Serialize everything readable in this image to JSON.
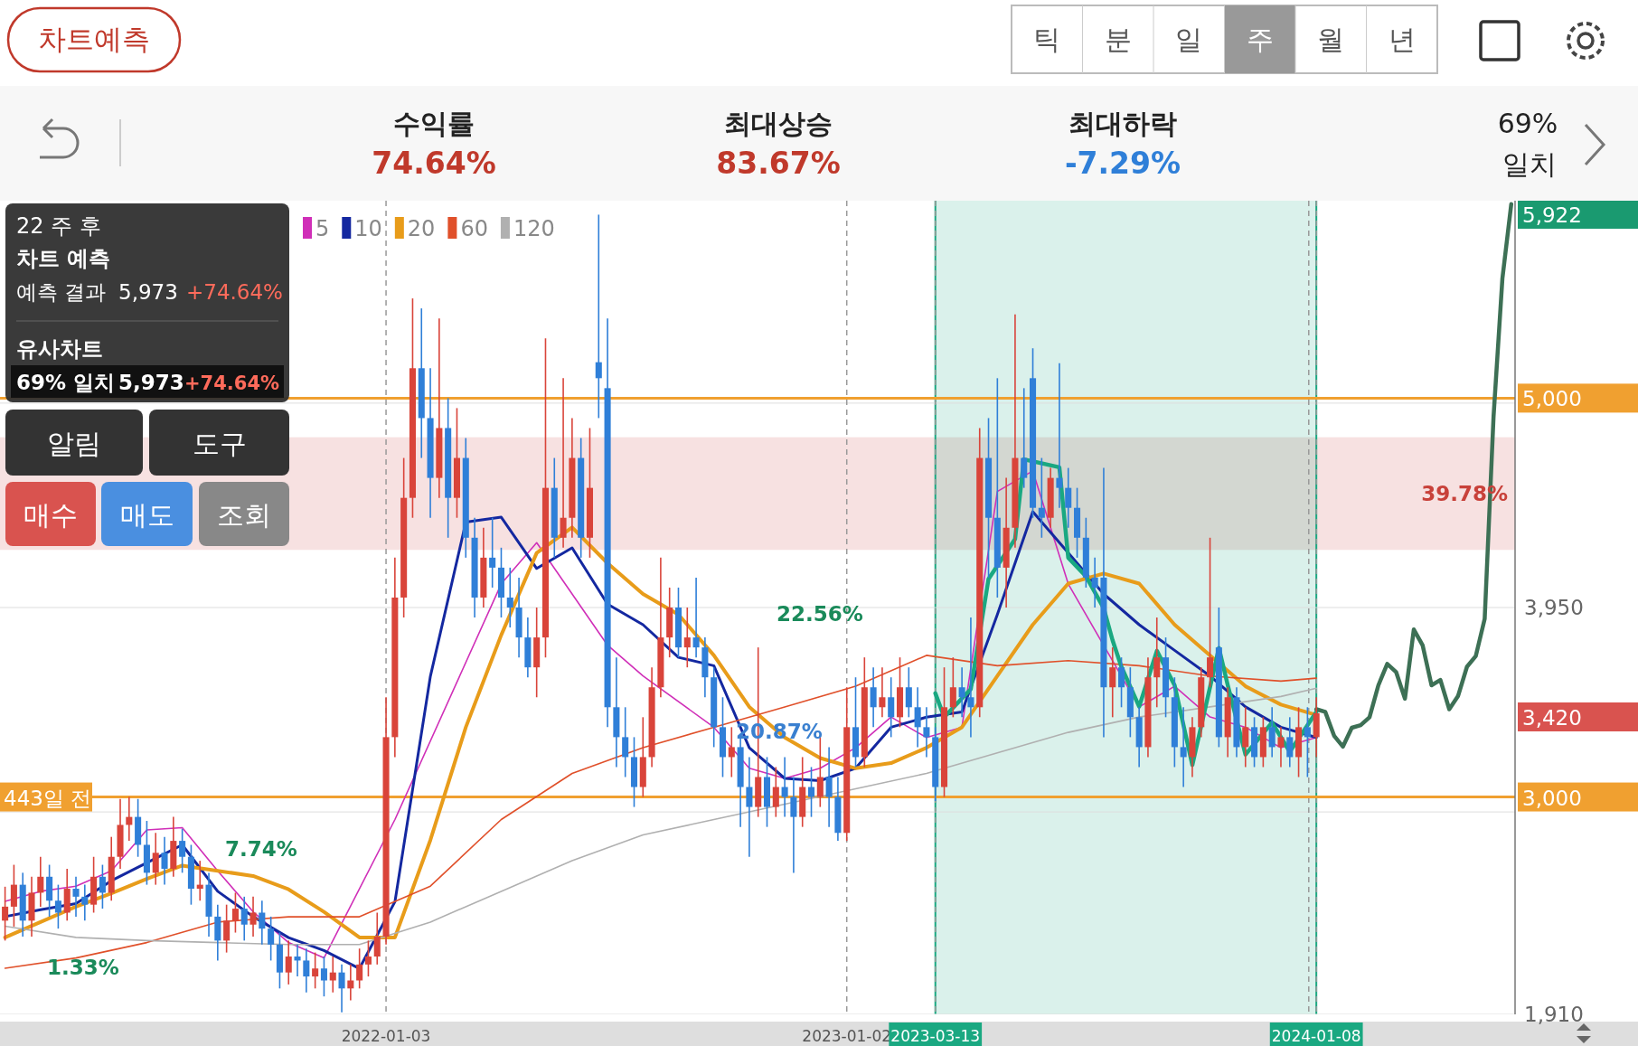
{
  "chart_data": {
    "type": "candlestick",
    "title": "차트예측",
    "x": [
      "2021-03-08",
      "2021-03-15",
      "2021-03-22",
      "2021-03-29",
      "2021-04-05",
      "2021-04-12",
      "2021-04-19",
      "2021-04-26",
      "2021-05-03",
      "2021-05-10",
      "2021-05-17",
      "2021-05-24",
      "2021-05-31",
      "2021-06-07",
      "2021-06-14",
      "2021-06-21",
      "2021-06-28",
      "2021-07-05",
      "2021-07-12",
      "2021-07-19",
      "2021-07-26",
      "2021-08-02",
      "2021-08-09",
      "2021-08-16",
      "2021-08-23",
      "2021-08-30",
      "2021-09-06",
      "2021-09-13",
      "2021-09-20",
      "2021-09-27",
      "2021-10-04",
      "2021-10-11",
      "2021-10-18",
      "2021-10-25",
      "2021-11-01",
      "2021-11-08",
      "2021-11-15",
      "2021-11-22",
      "2021-11-29",
      "2021-12-06",
      "2021-12-13",
      "2021-12-20",
      "2021-12-27",
      "2022-01-03",
      "2022-01-10",
      "2022-01-17",
      "2022-01-24",
      "2022-01-31",
      "2022-02-07",
      "2022-02-14",
      "2022-02-21",
      "2022-02-28",
      "2022-03-07",
      "2022-03-14",
      "2022-03-21",
      "2022-03-28",
      "2022-04-04",
      "2022-04-11",
      "2022-04-18",
      "2022-04-25",
      "2022-05-02",
      "2022-05-09",
      "2022-05-16",
      "2022-05-23",
      "2022-05-30",
      "2022-06-06",
      "2022-06-13",
      "2022-06-20",
      "2022-06-27",
      "2022-07-04",
      "2022-07-11",
      "2022-07-18",
      "2022-07-25",
      "2022-08-01",
      "2022-08-08",
      "2022-08-15",
      "2022-08-22",
      "2022-08-29",
      "2022-09-05",
      "2022-09-12",
      "2022-09-19",
      "2022-09-26",
      "2022-10-03",
      "2022-10-10",
      "2022-10-17",
      "2022-10-24",
      "2022-10-31",
      "2022-11-07",
      "2022-11-14",
      "2022-11-21",
      "2022-11-28",
      "2022-12-05",
      "2022-12-12",
      "2022-12-19",
      "2022-12-26",
      "2023-01-02",
      "2023-01-09",
      "2023-01-16",
      "2023-01-23",
      "2023-01-30",
      "2023-02-06",
      "2023-02-13",
      "2023-02-20",
      "2023-02-27",
      "2023-03-06",
      "2023-03-13",
      "2023-03-20",
      "2023-03-27",
      "2023-04-03",
      "2023-04-10",
      "2023-04-17",
      "2023-04-24",
      "2023-05-01",
      "2023-05-08",
      "2023-05-15",
      "2023-05-22",
      "2023-05-29",
      "2023-06-05",
      "2023-06-12",
      "2023-06-19",
      "2023-06-26",
      "2023-07-03",
      "2023-07-10",
      "2023-07-17",
      "2023-07-24",
      "2023-07-31",
      "2023-08-07",
      "2023-08-14",
      "2023-08-21",
      "2023-08-28",
      "2023-09-04",
      "2023-09-11",
      "2023-09-18",
      "2023-09-25",
      "2023-10-02",
      "2023-10-09",
      "2023-10-16",
      "2023-10-23",
      "2023-10-30",
      "2023-11-06",
      "2023-11-13",
      "2023-11-20",
      "2023-11-27",
      "2023-12-04",
      "2023-12-11",
      "2023-12-18",
      "2023-12-25",
      "2024-01-01",
      "2024-01-08"
    ],
    "ohlc": [
      [
        2380,
        2550,
        2280,
        2450
      ],
      [
        2450,
        2660,
        2350,
        2560
      ],
      [
        2560,
        2620,
        2300,
        2380
      ],
      [
        2380,
        2600,
        2300,
        2520
      ],
      [
        2520,
        2700,
        2450,
        2600
      ],
      [
        2600,
        2660,
        2400,
        2480
      ],
      [
        2480,
        2560,
        2340,
        2420
      ],
      [
        2420,
        2640,
        2380,
        2540
      ],
      [
        2540,
        2600,
        2400,
        2500
      ],
      [
        2500,
        2560,
        2380,
        2460
      ],
      [
        2460,
        2700,
        2420,
        2600
      ],
      [
        2600,
        2660,
        2440,
        2520
      ],
      [
        2520,
        2800,
        2480,
        2700
      ],
      [
        2700,
        2990,
        2640,
        2860
      ],
      [
        2860,
        3000,
        2780,
        2900
      ],
      [
        2900,
        2990,
        2700,
        2760
      ],
      [
        2760,
        2880,
        2560,
        2620
      ],
      [
        2620,
        2820,
        2560,
        2720
      ],
      [
        2720,
        2800,
        2560,
        2640
      ],
      [
        2640,
        2900,
        2600,
        2780
      ],
      [
        2780,
        2840,
        2620,
        2700
      ],
      [
        2700,
        2760,
        2460,
        2540
      ],
      [
        2540,
        2680,
        2480,
        2560
      ],
      [
        2560,
        2620,
        2300,
        2400
      ],
      [
        2400,
        2460,
        2180,
        2280
      ],
      [
        2280,
        2460,
        2220,
        2380
      ],
      [
        2380,
        2520,
        2320,
        2440
      ],
      [
        2440,
        2500,
        2280,
        2360
      ],
      [
        2360,
        2500,
        2300,
        2420
      ],
      [
        2420,
        2480,
        2260,
        2340
      ],
      [
        2340,
        2400,
        2180,
        2260
      ],
      [
        2260,
        2320,
        2040,
        2120
      ],
      [
        2120,
        2280,
        2060,
        2200
      ],
      [
        2200,
        2260,
        2100,
        2180
      ],
      [
        2180,
        2240,
        2020,
        2100
      ],
      [
        2100,
        2220,
        2040,
        2140
      ],
      [
        2140,
        2200,
        2000,
        2080
      ],
      [
        2080,
        2200,
        2020,
        2120
      ],
      [
        2120,
        2160,
        1920,
        2040
      ],
      [
        2040,
        2160,
        1980,
        2080
      ],
      [
        2080,
        2240,
        2040,
        2160
      ],
      [
        2160,
        2280,
        2100,
        2200
      ],
      [
        2200,
        2420,
        2160,
        2300
      ],
      [
        2300,
        3500,
        2260,
        3300
      ],
      [
        3300,
        4200,
        3200,
        4000
      ],
      [
        4000,
        4700,
        3900,
        4500
      ],
      [
        4500,
        5500,
        4400,
        5150
      ],
      [
        5150,
        5450,
        4700,
        4900
      ],
      [
        4900,
        5150,
        4400,
        4600
      ],
      [
        4600,
        5400,
        4500,
        4850
      ],
      [
        4850,
        5000,
        4300,
        4500
      ],
      [
        4500,
        4950,
        4400,
        4700
      ],
      [
        4700,
        4800,
        4200,
        4300
      ],
      [
        4300,
        4400,
        3900,
        4000
      ],
      [
        4000,
        4350,
        3950,
        4200
      ],
      [
        4200,
        4400,
        4050,
        4150
      ],
      [
        4150,
        4250,
        3900,
        4000
      ],
      [
        4000,
        4150,
        3850,
        3950
      ],
      [
        3950,
        4100,
        3700,
        3800
      ],
      [
        3800,
        3900,
        3600,
        3650
      ],
      [
        3650,
        3950,
        3500,
        3800
      ],
      [
        3800,
        5300,
        3700,
        4550
      ],
      [
        4550,
        4700,
        4200,
        4300
      ],
      [
        4300,
        5100,
        4250,
        4400
      ],
      [
        4400,
        4900,
        4300,
        4700
      ],
      [
        4700,
        4800,
        4200,
        4300
      ],
      [
        4300,
        4850,
        4200,
        4550
      ],
      [
        5180,
        5920,
        4900,
        5100
      ],
      [
        5050,
        5400,
        3350,
        3450
      ],
      [
        3450,
        3700,
        3150,
        3300
      ],
      [
        3300,
        3450,
        3100,
        3200
      ],
      [
        3200,
        3300,
        2950,
        3050
      ],
      [
        3050,
        3400,
        3000,
        3200
      ],
      [
        3200,
        3650,
        3150,
        3550
      ],
      [
        3550,
        4200,
        3500,
        3800
      ],
      [
        3800,
        4050,
        3700,
        3950
      ],
      [
        3950,
        4050,
        3700,
        3750
      ],
      [
        3750,
        3950,
        3650,
        3800
      ],
      [
        3800,
        4100,
        3700,
        3750
      ],
      [
        3750,
        3800,
        3500,
        3600
      ],
      [
        3600,
        3650,
        3250,
        3350
      ],
      [
        3350,
        3500,
        3100,
        3200
      ],
      [
        3200,
        3350,
        3100,
        3250
      ],
      [
        3250,
        3300,
        2850,
        3050
      ],
      [
        3050,
        3200,
        2700,
        2950
      ],
      [
        2950,
        3750,
        2900,
        3100
      ],
      [
        3100,
        3200,
        2850,
        2950
      ],
      [
        2950,
        3150,
        2900,
        3050
      ],
      [
        3050,
        3200,
        2900,
        3000
      ],
      [
        3000,
        3100,
        2620,
        2900
      ],
      [
        2900,
        3200,
        2850,
        3050
      ],
      [
        3050,
        3150,
        2900,
        3000
      ],
      [
        3000,
        3300,
        2950,
        3100
      ],
      [
        3100,
        3250,
        2850,
        3000
      ],
      [
        3000,
        3100,
        2780,
        2820
      ],
      [
        2820,
        3550,
        2780,
        3350
      ],
      [
        3350,
        3600,
        3150,
        3200
      ],
      [
        3200,
        3700,
        3150,
        3550
      ],
      [
        3550,
        3650,
        3350,
        3450
      ],
      [
        3450,
        3650,
        3400,
        3500
      ],
      [
        3500,
        3600,
        3300,
        3400
      ],
      [
        3400,
        3700,
        3350,
        3550
      ],
      [
        3550,
        3650,
        3400,
        3450
      ],
      [
        3450,
        3550,
        3250,
        3350
      ],
      [
        3350,
        3450,
        3200,
        3300
      ],
      [
        3300,
        3350,
        2980,
        3050
      ],
      [
        3050,
        3650,
        3000,
        3450
      ],
      [
        3450,
        3700,
        3400,
        3550
      ],
      [
        3550,
        3650,
        3400,
        3500
      ],
      [
        3500,
        3900,
        3300,
        3450
      ],
      [
        3450,
        4850,
        3400,
        4700
      ],
      [
        4700,
        4900,
        4100,
        4400
      ],
      [
        4400,
        5100,
        4000,
        4150
      ],
      [
        4150,
        4600,
        3950,
        4350
      ],
      [
        4350,
        5420,
        4250,
        4700
      ],
      [
        4700,
        5050,
        4550,
        4600
      ],
      [
        5100,
        5250,
        4400,
        4450
      ],
      [
        4450,
        4700,
        4300,
        4400
      ],
      [
        4400,
        4650,
        4350,
        4600
      ],
      [
        4600,
        5175,
        4450,
        4550
      ],
      [
        4550,
        4650,
        4350,
        4450
      ],
      [
        4450,
        4550,
        4200,
        4300
      ],
      [
        4300,
        4400,
        4050,
        4100
      ],
      [
        4100,
        4200,
        3950,
        4050
      ],
      [
        4100,
        4650,
        3300,
        3550
      ],
      [
        3550,
        3750,
        3400,
        3650
      ],
      [
        3650,
        3700,
        3450,
        3550
      ],
      [
        3550,
        3650,
        3300,
        3400
      ],
      [
        3400,
        3450,
        3150,
        3250
      ],
      [
        3250,
        3700,
        3200,
        3600
      ],
      [
        3600,
        3900,
        3450,
        3700
      ],
      [
        3700,
        3800,
        3400,
        3500
      ],
      [
        3500,
        3600,
        3150,
        3250
      ],
      [
        3250,
        3450,
        3050,
        3200
      ],
      [
        3200,
        3400,
        3100,
        3350
      ],
      [
        3350,
        3650,
        3300,
        3600
      ],
      [
        3600,
        4300,
        3550,
        3700
      ],
      [
        3750,
        3950,
        3250,
        3300
      ],
      [
        3300,
        3550,
        3200,
        3500
      ],
      [
        3500,
        3550,
        3200,
        3250
      ],
      [
        3250,
        3450,
        3150,
        3350
      ],
      [
        3350,
        3400,
        3150,
        3200
      ],
      [
        3200,
        3400,
        3150,
        3350
      ],
      [
        3350,
        3450,
        3200,
        3250
      ],
      [
        3250,
        3350,
        3150,
        3300
      ],
      [
        3300,
        3400,
        3150,
        3200
      ],
      [
        3200,
        3450,
        3100,
        3350
      ],
      [
        3350,
        3450,
        3100,
        3300
      ],
      [
        3300,
        3500,
        3200,
        3420
      ]
    ],
    "series": [
      {
        "name": "5",
        "type": "line",
        "color": "#d02fb8",
        "x": [
          "2021-03-08",
          "2021-04-05",
          "2021-05-03",
          "2021-05-31",
          "2021-06-28",
          "2021-07-26",
          "2021-08-23",
          "2021-09-20",
          "2021-10-18",
          "2021-11-15",
          "2021-12-13",
          "2022-01-10",
          "2022-02-07",
          "2022-03-07",
          "2022-04-04",
          "2022-05-02",
          "2022-05-30",
          "2022-06-27",
          "2022-07-25",
          "2022-08-22",
          "2022-09-19",
          "2022-10-17",
          "2022-11-14",
          "2022-12-12",
          "2023-01-09",
          "2023-02-06",
          "2023-03-06",
          "2023-04-03",
          "2023-05-01",
          "2023-05-29",
          "2023-06-26",
          "2023-07-24",
          "2023-08-21",
          "2023-09-18",
          "2023-10-16",
          "2023-11-13",
          "2023-12-11",
          "2024-01-08"
        ],
        "values": [
          2476,
          2527,
          2553,
          2630,
          2835,
          2846,
          2630,
          2424,
          2270,
          2193,
          null,
          2887,
          null,
          null,
          4069,
          4275,
          null,
          3761,
          3607,
          null,
          3350,
          3144,
          3093,
          3144,
          3247,
          3401,
          3298,
          3350,
          4532,
          4635,
          4069,
          null,
          3452,
          3555,
          3401,
          3350,
          3247,
          3298
        ]
      },
      {
        "name": "10",
        "type": "line",
        "color": "#1428a0",
        "x": [
          "2021-03-08",
          "2021-04-05",
          "2021-05-03",
          "2021-05-31",
          "2021-06-28",
          "2021-07-26",
          "2021-08-23",
          "2021-09-20",
          "2021-10-18",
          "2021-11-15",
          "2021-12-13",
          "2022-01-10",
          "2022-02-07",
          "2022-03-07",
          "2022-04-04",
          "2022-05-02",
          "2022-05-30",
          "2022-06-27",
          "2022-07-25",
          "2022-08-22",
          "2022-09-19",
          "2022-10-17",
          "2022-11-14",
          "2022-12-12",
          "2023-01-09",
          "2023-02-06",
          "2023-03-06",
          "2023-04-03",
          "2023-05-01",
          "2023-05-29",
          "2023-06-26",
          "2023-07-24",
          "2023-08-21",
          "2023-09-18",
          "2023-10-16",
          "2023-11-13",
          "2023-12-11",
          "2024-01-08"
        ],
        "values": [
          2400,
          2435,
          2465,
          2580,
          2670,
          2760,
          2527,
          2400,
          2295,
          2230,
          2140,
          2475,
          3605,
          4378,
          4403,
          4146,
          4249,
          3967,
          3864,
          3700,
          3658,
          3247,
          3093,
          3082,
          3144,
          3350,
          3400,
          3427,
          3915,
          4430,
          null,
          4018,
          3864,
          3735,
          3607,
          3452,
          3350,
          3298
        ]
      },
      {
        "name": "20",
        "type": "line",
        "color": "#e89c1a",
        "x": [
          "2021-03-08",
          "2021-04-05",
          "2021-05-03",
          "2021-05-31",
          "2021-06-28",
          "2021-07-26",
          "2021-08-23",
          "2021-09-20",
          "2021-10-18",
          "2021-11-15",
          "2021-12-13",
          "2022-01-10",
          "2022-02-07",
          "2022-03-07",
          "2022-04-04",
          "2022-05-02",
          "2022-05-30",
          "2022-06-27",
          "2022-07-25",
          "2022-08-22",
          "2022-09-19",
          "2022-10-17",
          "2022-11-14",
          "2022-12-12",
          "2023-01-09",
          "2023-02-06",
          "2023-03-06",
          "2023-04-03",
          "2023-05-01",
          "2023-05-29",
          "2023-06-26",
          "2023-07-24",
          "2023-08-21",
          "2023-09-18",
          "2023-10-16",
          "2023-11-13",
          "2023-12-11",
          "2024-01-08"
        ],
        "values": [
          2296,
          2373,
          2450,
          2517,
          2589,
          2656,
          2630,
          2604,
          2537,
          2424,
          2296,
          2296,
          2784,
          3350,
          3812,
          4224,
          4352,
          4172,
          4018,
          3915,
          3710,
          3452,
          3298,
          3195,
          3144,
          3170,
          3247,
          3350,
          3607,
          3864,
          4070,
          4121,
          4070,
          3864,
          3710,
          3555,
          3463,
          3411
        ]
      },
      {
        "name": "60",
        "type": "line",
        "color": "#e0502a",
        "x": [
          "2021-03-08",
          "2021-05-03",
          "2021-06-28",
          "2021-08-23",
          "2021-10-18",
          "2021-12-13",
          "2022-02-07",
          "2022-04-04",
          "2022-05-30",
          "2022-07-25",
          "2022-09-19",
          "2022-11-14",
          "2023-01-09",
          "2023-03-06",
          "2023-05-01",
          "2023-06-26",
          "2023-08-21",
          "2023-10-16",
          "2023-12-11",
          "2024-01-08"
        ],
        "values": [
          2141,
          2193,
          2270,
          2373,
          2399,
          2399,
          2553,
          2887,
          3118,
          3247,
          3350,
          3452,
          3555,
          3710,
          3658,
          3684,
          3658,
          3607,
          3581,
          3596
        ]
      },
      {
        "name": "120",
        "type": "line",
        "color": "#b0b0b0",
        "x": [
          "2021-03-08",
          "2021-05-03",
          "2021-06-28",
          "2021-08-23",
          "2021-10-18",
          "2021-12-13",
          "2022-02-07",
          "2022-04-04",
          "2022-05-30",
          "2022-07-25",
          "2022-09-19",
          "2022-11-14",
          "2023-01-09",
          "2023-03-06",
          "2023-05-01",
          "2023-06-26",
          "2023-08-21",
          "2023-10-16",
          "2023-12-11",
          "2024-01-08"
        ],
        "values": [
          2352,
          2296,
          2280,
          2270,
          2260,
          2260,
          2373,
          2527,
          2681,
          2810,
          2887,
          2964,
          3041,
          3118,
          3221,
          3324,
          3401,
          3452,
          3504,
          3545
        ]
      },
      {
        "type": "line",
        "color": "#1aa881",
        "x": [
          "2023-03-13",
          "2023-03-20",
          "2023-04-10",
          "2023-04-17",
          "2023-04-24",
          "2023-05-15",
          "2023-05-22",
          "2023-06-19",
          "2023-06-26",
          "2023-07-10",
          "2023-07-24",
          "2023-07-31",
          "2023-08-07",
          "2023-08-21",
          "2023-09-04",
          "2023-09-18",
          "2023-10-02",
          "2023-10-23",
          "2023-10-30",
          "2023-11-13",
          "2023-12-04",
          "2023-12-18",
          "2024-01-08"
        ],
        "values": [
          3520,
          3400,
          3541,
          null,
          4093,
          4293,
          4693,
          4653,
          4200,
          4107,
          3947,
          3787,
          3653,
          3453,
          3733,
          3560,
          3160,
          3747,
          3560,
          3213,
          3373,
          3227,
          3427
        ]
      },
      {
        "type": "line",
        "color": "#3d7055",
        "x": [
          "2024-01-08",
          "2024-01-15",
          "2024-01-22",
          "2024-01-29",
          "2024-02-05",
          "2024-02-12",
          "2024-02-19",
          "2024-02-26",
          "2024-03-04",
          "2024-03-11",
          "2024-03-18",
          "2024-03-25",
          "2024-04-01",
          "2024-04-08",
          "2024-04-15",
          "2024-04-22",
          "2024-04-29",
          "2024-05-06",
          "2024-05-13",
          "2024-05-20",
          "2024-05-27",
          "2024-06-03",
          "2024-06-10"
        ],
        "values": [
          3440,
          3427,
          3307,
          3253,
          3347,
          3360,
          3400,
          3560,
          3667,
          3627,
          3493,
          3840,
          3760,
          3560,
          3587,
          3440,
          3507,
          3653,
          3707,
          3893,
          4907,
          5600,
          5973
        ]
      }
    ],
    "xlim": [
      "2021-03-04",
      "2024-06-13"
    ],
    "ylim": [
      1910,
      5990
    ],
    "yticks": [
      {
        "value": 1910,
        "label": "1,910"
      },
      {
        "value": 2925,
        "label": null
      },
      {
        "value": 3950,
        "label": "3,950"
      },
      {
        "value": 4975,
        "label": null
      }
    ],
    "xticks": [
      {
        "value": "2022-01-03",
        "label": "2022-01-03"
      },
      {
        "value": "2023-01-02",
        "label": "2023-01-02"
      },
      {
        "value": "2023-03-13",
        "label": "2023-03-13"
      },
      {
        "value": "2024-01-02",
        "label": null
      },
      {
        "value": "2024-01-08",
        "label": "2024-01-08"
      }
    ],
    "grid": true,
    "legend": "top left",
    "ref_lines": [
      {
        "axis": "y",
        "value": 5000,
        "label": "5,000",
        "color": "#f0a030"
      },
      {
        "axis": "y",
        "value": 3000,
        "label": "3,000",
        "color": "#f0a030"
      }
    ],
    "bands": [
      {
        "axis": "y",
        "from": 4239,
        "to": 4804,
        "label": "39.78%",
        "color": "#f6dcdc"
      },
      {
        "axis": "x",
        "from": "2023-03-13",
        "to": "2024-01-08",
        "color": "#1aa881"
      }
    ],
    "annotations": [
      "틱",
      "분",
      "일",
      "주",
      "월",
      "년",
      "수익률",
      "74.64%",
      "최대상승",
      "83.67%",
      "최대하락",
      "-7.29%",
      "69%",
      "일치",
      "22 주 후",
      "차트 예측",
      "예측 결과",
      "5,973",
      "+74.64%",
      "유사차트",
      "69% 일치",
      "5,973",
      "+74.64%",
      "알림",
      "도구",
      "매수",
      "매도",
      "조회",
      "443일 전",
      "22.56%",
      "20.87%",
      "7.74%",
      "1.33%",
      "5,922",
      "3,420"
    ]
  }
}
